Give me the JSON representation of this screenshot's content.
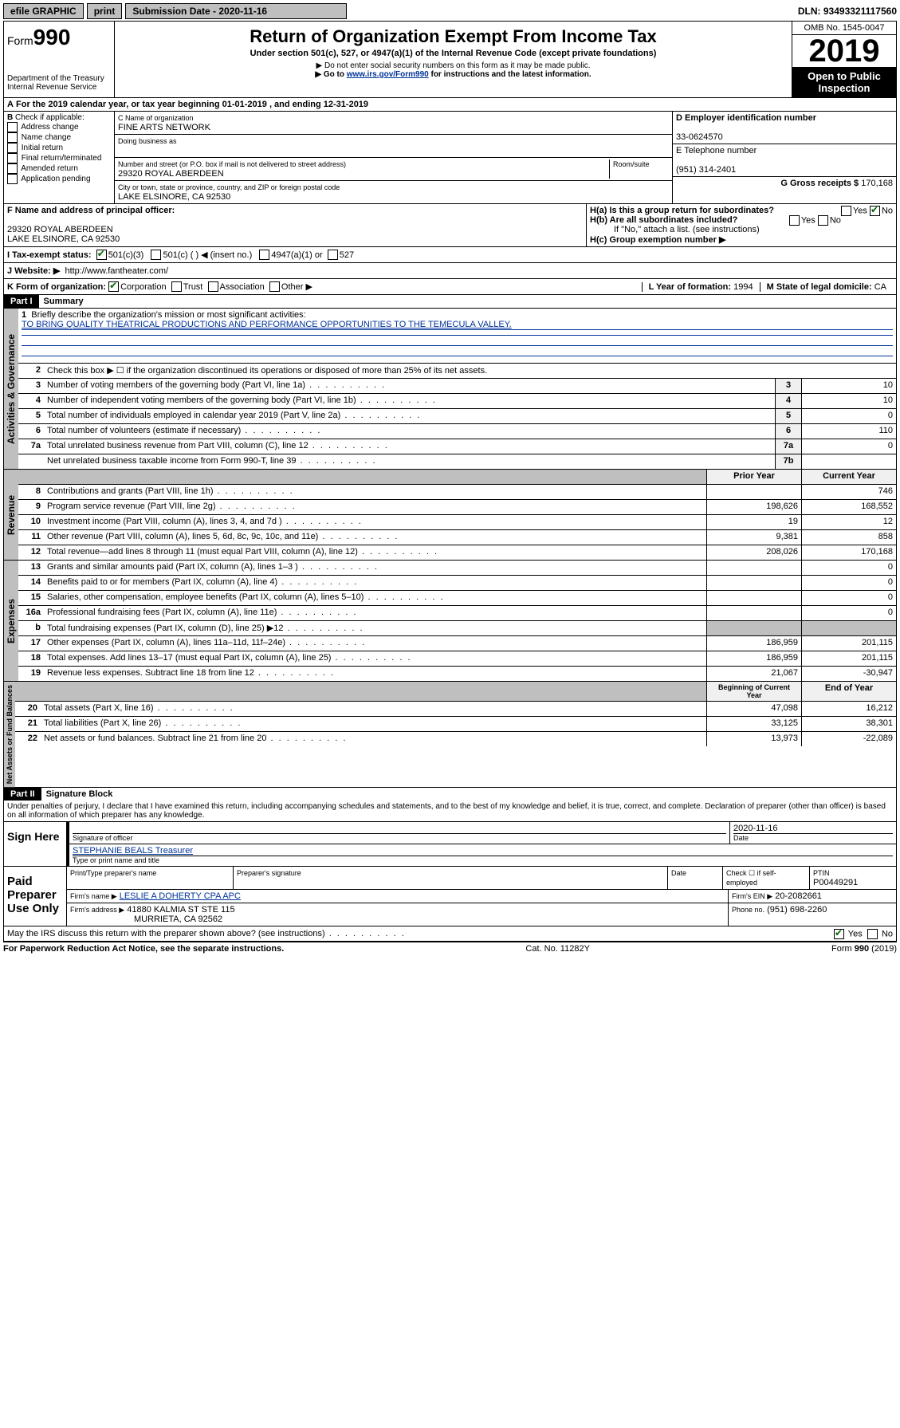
{
  "topbar": {
    "efile": "efile GRAPHIC",
    "print": "print",
    "submission_label": "Submission Date - 2020-11-16",
    "dln": "DLN: 93493321117560"
  },
  "header": {
    "form_prefix": "Form",
    "form_number": "990",
    "dept": "Department of the Treasury\nInternal Revenue Service",
    "title": "Return of Organization Exempt From Income Tax",
    "subtitle": "Under section 501(c), 527, or 4947(a)(1) of the Internal Revenue Code (except private foundations)",
    "note1": "▶ Do not enter social security numbers on this form as it may be made public.",
    "note2_pre": "▶ Go to ",
    "note2_link": "www.irs.gov/Form990",
    "note2_post": " for instructions and the latest information.",
    "omb": "OMB No. 1545-0047",
    "year": "2019",
    "open": "Open to Public\nInspection"
  },
  "period": "For the 2019 calendar year, or tax year beginning 01-01-2019   , and ending 12-31-2019",
  "checkboxes": {
    "heading": "Check if applicable:",
    "items": [
      "Address change",
      "Name change",
      "Initial return",
      "Final return/terminated",
      "Amended return",
      "Application pending"
    ]
  },
  "entity": {
    "name_label": "C Name of organization",
    "name": "FINE ARTS NETWORK",
    "dba_label": "Doing business as",
    "addr_label": "Number and street (or P.O. box if mail is not delivered to street address)",
    "room_label": "Room/suite",
    "addr": "29320 ROYAL ABERDEEN",
    "city_label": "City or town, state or province, country, and ZIP or foreign postal code",
    "city": "LAKE ELSINORE, CA  92530",
    "ein_label": "D Employer identification number",
    "ein": "33-0624570",
    "phone_label": "E Telephone number",
    "phone": "(951) 314-2401",
    "gross_label": "G Gross receipts $",
    "gross": "170,168"
  },
  "officer": {
    "label": "F  Name and address of principal officer:",
    "addr1": "29320 ROYAL ABERDEEN",
    "addr2": "LAKE ELSINORE, CA  92530",
    "ha": "H(a)  Is this a group return for subordinates?",
    "hb": "H(b)  Are all subordinates included?",
    "hb_note": "If \"No,\" attach a list. (see instructions)",
    "hc": "H(c)  Group exemption number ▶",
    "yes": "Yes",
    "no": "No"
  },
  "status": {
    "label": "I   Tax-exempt status:",
    "opt1": "501(c)(3)",
    "opt2": "501(c) (   ) ◀ (insert no.)",
    "opt3": "4947(a)(1) or",
    "opt4": "527"
  },
  "website": {
    "label": "J   Website: ▶",
    "url": "http://www.fantheater.com/"
  },
  "korg": {
    "label": "K Form of organization:",
    "corp": "Corporation",
    "trust": "Trust",
    "assoc": "Association",
    "other": "Other ▶",
    "l_label": "L Year of formation:",
    "l_val": "1994",
    "m_label": "M State of legal domicile:",
    "m_val": "CA"
  },
  "part1": {
    "header": "Part I",
    "title": "Summary",
    "q1": "Briefly describe the organization's mission or most significant activities:",
    "mission": "TO BRING QUALITY THEATRICAL PRODUCTIONS AND PERFORMANCE OPPORTUNITIES TO THE TEMECULA VALLEY.",
    "q2": "Check this box ▶ ☐  if the organization discontinued its operations or disposed of more than 25% of its net assets.",
    "lines_gov": [
      {
        "n": "3",
        "t": "Number of voting members of the governing body (Part VI, line 1a)",
        "b": "3",
        "v": "10"
      },
      {
        "n": "4",
        "t": "Number of independent voting members of the governing body (Part VI, line 1b)",
        "b": "4",
        "v": "10"
      },
      {
        "n": "5",
        "t": "Total number of individuals employed in calendar year 2019 (Part V, line 2a)",
        "b": "5",
        "v": "0"
      },
      {
        "n": "6",
        "t": "Total number of volunteers (estimate if necessary)",
        "b": "6",
        "v": "110"
      },
      {
        "n": "7a",
        "t": "Total unrelated business revenue from Part VIII, column (C), line 12",
        "b": "7a",
        "v": "0"
      },
      {
        "n": "",
        "t": "Net unrelated business taxable income from Form 990-T, line 39",
        "b": "7b",
        "v": ""
      }
    ],
    "prior": "Prior Year",
    "current": "Current Year",
    "revenue": [
      {
        "n": "8",
        "t": "Contributions and grants (Part VIII, line 1h)",
        "p": "",
        "c": "746"
      },
      {
        "n": "9",
        "t": "Program service revenue (Part VIII, line 2g)",
        "p": "198,626",
        "c": "168,552"
      },
      {
        "n": "10",
        "t": "Investment income (Part VIII, column (A), lines 3, 4, and 7d )",
        "p": "19",
        "c": "12"
      },
      {
        "n": "11",
        "t": "Other revenue (Part VIII, column (A), lines 5, 6d, 8c, 9c, 10c, and 11e)",
        "p": "9,381",
        "c": "858"
      },
      {
        "n": "12",
        "t": "Total revenue—add lines 8 through 11 (must equal Part VIII, column (A), line 12)",
        "p": "208,026",
        "c": "170,168"
      }
    ],
    "expenses": [
      {
        "n": "13",
        "t": "Grants and similar amounts paid (Part IX, column (A), lines 1–3 )",
        "p": "",
        "c": "0"
      },
      {
        "n": "14",
        "t": "Benefits paid to or for members (Part IX, column (A), line 4)",
        "p": "",
        "c": "0"
      },
      {
        "n": "15",
        "t": "Salaries, other compensation, employee benefits (Part IX, column (A), lines 5–10)",
        "p": "",
        "c": "0"
      },
      {
        "n": "16a",
        "t": "Professional fundraising fees (Part IX, column (A), line 11e)",
        "p": "",
        "c": "0"
      },
      {
        "n": "b",
        "t": "Total fundraising expenses (Part IX, column (D), line 25) ▶12",
        "p": "shaded",
        "c": "shaded"
      },
      {
        "n": "17",
        "t": "Other expenses (Part IX, column (A), lines 11a–11d, 11f–24e)",
        "p": "186,959",
        "c": "201,115"
      },
      {
        "n": "18",
        "t": "Total expenses. Add lines 13–17 (must equal Part IX, column (A), line 25)",
        "p": "186,959",
        "c": "201,115"
      },
      {
        "n": "19",
        "t": "Revenue less expenses. Subtract line 18 from line 12",
        "p": "21,067",
        "c": "-30,947"
      }
    ],
    "begin": "Beginning of Current Year",
    "end": "End of Year",
    "netassets": [
      {
        "n": "20",
        "t": "Total assets (Part X, line 16)",
        "p": "47,098",
        "c": "16,212"
      },
      {
        "n": "21",
        "t": "Total liabilities (Part X, line 26)",
        "p": "33,125",
        "c": "38,301"
      },
      {
        "n": "22",
        "t": "Net assets or fund balances. Subtract line 21 from line 20",
        "p": "13,973",
        "c": "-22,089"
      }
    ]
  },
  "part2": {
    "header": "Part II",
    "title": "Signature Block",
    "perjury": "Under penalties of perjury, I declare that I have examined this return, including accompanying schedules and statements, and to the best of my knowledge and belief, it is true, correct, and complete. Declaration of preparer (other than officer) is based on all information of which preparer has any knowledge.",
    "sign_here": "Sign Here",
    "sig_officer": "Signature of officer",
    "date": "Date",
    "date_val": "2020-11-16",
    "officer_name": "STEPHANIE BEALS Treasurer",
    "type_name": "Type or print name and title",
    "paid": "Paid Preparer Use Only",
    "prep_name_label": "Print/Type preparer's name",
    "prep_sig_label": "Preparer's signature",
    "prep_date_label": "Date",
    "check_self": "Check ☐ if self-employed",
    "ptin_label": "PTIN",
    "ptin": "P00449291",
    "firm_name_label": "Firm's name     ▶",
    "firm_name": "LESLIE A DOHERTY CPA APC",
    "firm_ein_label": "Firm's EIN ▶",
    "firm_ein": "20-2082661",
    "firm_addr_label": "Firm's address ▶",
    "firm_addr": "41880 KALMIA ST STE 115",
    "firm_city": "MURRIETA, CA  92562",
    "phone_label": "Phone no.",
    "phone": "(951) 698-2260",
    "discuss": "May the IRS discuss this return with the preparer shown above? (see instructions)",
    "yes": "Yes",
    "no": "No"
  },
  "footer": {
    "left": "For Paperwork Reduction Act Notice, see the separate instructions.",
    "mid": "Cat. No. 11282Y",
    "right": "Form 990 (2019)"
  },
  "labels": {
    "gov": "Activities & Governance",
    "rev": "Revenue",
    "exp": "Expenses",
    "net": "Net Assets or Fund Balances"
  }
}
